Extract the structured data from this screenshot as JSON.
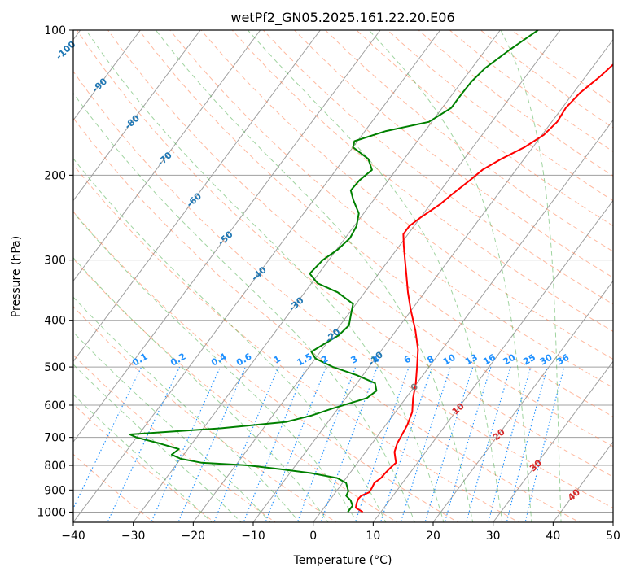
{
  "chart_data": {
    "type": "line",
    "title": "wetPf2_GN05.2025.161.22.20.E06",
    "xlabel": "Temperature (°C)",
    "ylabel": "Pressure (hPa)",
    "xlim": [
      -40,
      50
    ],
    "ylim": [
      1050,
      100
    ],
    "y_scale": "log",
    "skew": "skewed isotherms (Skew-T log-P)",
    "grid": true,
    "x_ticks": [
      -40,
      -30,
      -20,
      -10,
      0,
      10,
      20,
      30,
      40,
      50
    ],
    "x_tick_labels": [
      "−40",
      "−30",
      "−20",
      "−10",
      "0",
      "10",
      "20",
      "30",
      "40",
      "50"
    ],
    "y_ticks": [
      1000,
      900,
      800,
      700,
      600,
      500,
      400,
      300,
      200,
      100
    ],
    "y_tick_labels": [
      "1000",
      "900",
      "800",
      "700",
      "600",
      "500",
      "400",
      "300",
      "200",
      "100"
    ],
    "isotherm_labels_cold": [
      "-100",
      "-90",
      "-80",
      "-70",
      "-60",
      "-50",
      "-40",
      "-30",
      "-20",
      "-10"
    ],
    "isotherm_labels_warm": [
      "0",
      "10",
      "20",
      "30",
      "40"
    ],
    "mixing_ratio_labels": [
      "0.1",
      "0.2",
      "0.4",
      "0.6",
      "1",
      "1.5",
      "2",
      "3",
      "4",
      "6",
      "8",
      "10",
      "13",
      "16",
      "20",
      "25",
      "30",
      "36"
    ],
    "colors": {
      "temperature": "#ff0000",
      "dewpoint": "#008000",
      "isotherm_cold_label": "#1f77b4",
      "isotherm_zero_label": "#808080",
      "isotherm_warm_label": "#d62728",
      "mixing_ratio": "#1e90ff",
      "dry_adiabat": "#ff7f50",
      "moist_adiabat": "#2ca02c",
      "skew_grid": "#a0a0a0"
    },
    "series": [
      {
        "variable": "temperature",
        "points": [
          {
            "p": 1000,
            "t": 7.0
          },
          {
            "p": 980,
            "t": 5.3
          },
          {
            "p": 960,
            "t": 4.9
          },
          {
            "p": 940,
            "t": 4.6
          },
          {
            "p": 925,
            "t": 4.7
          },
          {
            "p": 910,
            "t": 5.6
          },
          {
            "p": 890,
            "t": 5.5
          },
          {
            "p": 870,
            "t": 5.3
          },
          {
            "p": 850,
            "t": 5.8
          },
          {
            "p": 830,
            "t": 5.9
          },
          {
            "p": 810,
            "t": 6.1
          },
          {
            "p": 790,
            "t": 6.4
          },
          {
            "p": 770,
            "t": 5.6
          },
          {
            "p": 750,
            "t": 4.8
          },
          {
            "p": 720,
            "t": 4.2
          },
          {
            "p": 700,
            "t": 4.0
          },
          {
            "p": 660,
            "t": 3.6
          },
          {
            "p": 620,
            "t": 2.8
          },
          {
            "p": 580,
            "t": 1.2
          },
          {
            "p": 540,
            "t": -0.2
          },
          {
            "p": 500,
            "t": -2.0
          },
          {
            "p": 460,
            "t": -4.0
          },
          {
            "p": 420,
            "t": -6.8
          },
          {
            "p": 380,
            "t": -10.2
          },
          {
            "p": 350,
            "t": -12.8
          },
          {
            "p": 320,
            "t": -15.4
          },
          {
            "p": 300,
            "t": -17.3
          },
          {
            "p": 280,
            "t": -19.3
          },
          {
            "p": 265,
            "t": -20.8
          },
          {
            "p": 255,
            "t": -20.8
          },
          {
            "p": 245,
            "t": -20.0
          },
          {
            "p": 230,
            "t": -18.4
          },
          {
            "p": 220,
            "t": -17.7
          },
          {
            "p": 205,
            "t": -16.4
          },
          {
            "p": 195,
            "t": -15.6
          },
          {
            "p": 185,
            "t": -13.8
          },
          {
            "p": 175,
            "t": -11.4
          },
          {
            "p": 165,
            "t": -9.7
          },
          {
            "p": 155,
            "t": -9.1
          },
          {
            "p": 145,
            "t": -9.4
          },
          {
            "p": 135,
            "t": -8.9
          },
          {
            "p": 125,
            "t": -7.6
          },
          {
            "p": 115,
            "t": -6.6
          },
          {
            "p": 108,
            "t": -6.6
          },
          {
            "p": 100,
            "t": -5.7
          }
        ]
      },
      {
        "variable": "dewpoint",
        "points": [
          {
            "p": 1000,
            "t": 4.5
          },
          {
            "p": 970,
            "t": 4.5
          },
          {
            "p": 945,
            "t": 3.5
          },
          {
            "p": 925,
            "t": 2.2
          },
          {
            "p": 905,
            "t": 2.0
          },
          {
            "p": 885,
            "t": 1.2
          },
          {
            "p": 870,
            "t": 0.6
          },
          {
            "p": 850,
            "t": -1.5
          },
          {
            "p": 830,
            "t": -6.5
          },
          {
            "p": 815,
            "t": -12.0
          },
          {
            "p": 800,
            "t": -18.0
          },
          {
            "p": 790,
            "t": -26.0
          },
          {
            "p": 775,
            "t": -30.0
          },
          {
            "p": 760,
            "t": -32.0
          },
          {
            "p": 740,
            "t": -31.5
          },
          {
            "p": 720,
            "t": -35.5
          },
          {
            "p": 700,
            "t": -40.0
          },
          {
            "p": 690,
            "t": -41.5
          },
          {
            "p": 685,
            "t": -38.0
          },
          {
            "p": 670,
            "t": -27.0
          },
          {
            "p": 650,
            "t": -17.0
          },
          {
            "p": 630,
            "t": -13.5
          },
          {
            "p": 610,
            "t": -11.0
          },
          {
            "p": 580,
            "t": -6.5
          },
          {
            "p": 560,
            "t": -5.8
          },
          {
            "p": 540,
            "t": -7.0
          },
          {
            "p": 520,
            "t": -11.0
          },
          {
            "p": 500,
            "t": -16.0
          },
          {
            "p": 480,
            "t": -20.0
          },
          {
            "p": 465,
            "t": -21.5
          },
          {
            "p": 450,
            "t": -20.5
          },
          {
            "p": 430,
            "t": -19.0
          },
          {
            "p": 410,
            "t": -18.5
          },
          {
            "p": 390,
            "t": -19.5
          },
          {
            "p": 370,
            "t": -20.5
          },
          {
            "p": 350,
            "t": -24.5
          },
          {
            "p": 335,
            "t": -29.0
          },
          {
            "p": 320,
            "t": -31.5
          },
          {
            "p": 300,
            "t": -31.0
          },
          {
            "p": 285,
            "t": -29.8
          },
          {
            "p": 270,
            "t": -29.2
          },
          {
            "p": 255,
            "t": -29.6
          },
          {
            "p": 240,
            "t": -30.8
          },
          {
            "p": 225,
            "t": -33.4
          },
          {
            "p": 215,
            "t": -35.0
          },
          {
            "p": 205,
            "t": -34.8
          },
          {
            "p": 195,
            "t": -34.0
          },
          {
            "p": 185,
            "t": -36.0
          },
          {
            "p": 175,
            "t": -40.0
          },
          {
            "p": 170,
            "t": -40.5
          },
          {
            "p": 162,
            "t": -36.5
          },
          {
            "p": 155,
            "t": -30.5
          },
          {
            "p": 145,
            "t": -28.5
          },
          {
            "p": 135,
            "t": -28.5
          },
          {
            "p": 128,
            "t": -28.4
          },
          {
            "p": 120,
            "t": -27.8
          },
          {
            "p": 110,
            "t": -26.0
          },
          {
            "p": 100,
            "t": -23.7
          }
        ]
      }
    ]
  }
}
